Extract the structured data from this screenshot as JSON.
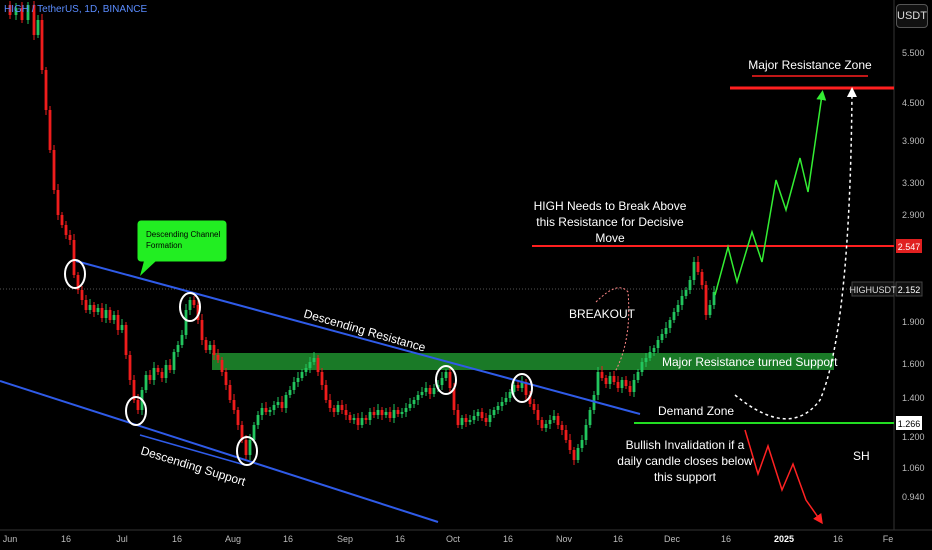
{
  "header": {
    "symbol_title": "HIGH / TetherUS, 1D, BINANCE",
    "currency": "USDT"
  },
  "colors": {
    "background": "#000000",
    "up": "#22c55e",
    "down": "#ef1c1c",
    "channel": "#2f5be8",
    "resistance": "#ff1f1f",
    "support_zone": "#1f8f2e",
    "projection_up": "#33ee33",
    "projection_down": "#ff2222"
  },
  "chart_data": {
    "type": "candlestick",
    "symbol": "HIGHUSDT",
    "y_scale": "log",
    "y_ticks": [
      "5.500",
      "4.500",
      "3.900",
      "3.300",
      "2.900",
      "2.547",
      "2.152",
      "1.900",
      "1.600",
      "1.400",
      "1.266",
      "1.200",
      "1.060",
      "0.940"
    ],
    "x_ticks": [
      "Jun",
      "16",
      "Jul",
      "16",
      "Aug",
      "16",
      "Sep",
      "16",
      "Oct",
      "16",
      "Nov",
      "16",
      "Dec",
      "16",
      "2025",
      "16",
      "Fe"
    ],
    "last_price": "2.152",
    "price_labels": [
      {
        "name": "HIGHUSDT",
        "value": "2.152"
      },
      {
        "name": "resistance",
        "value": "2.547"
      },
      {
        "name": "support",
        "value": "1.266"
      }
    ],
    "levels": {
      "major_resistance_zone": 4.85,
      "resistance": 2.547,
      "support_zone_top": 1.63,
      "support_zone_bottom": 1.54,
      "demand_zone": 1.266
    },
    "annotations": {
      "callout": "Descending Channel Formation",
      "descending_resistance": "Descending Resistance",
      "descending_support": "Descending Support",
      "major_resistance_zone": "Major Resistance Zone",
      "needs_break": "HIGH Needs to Break Above this Resistance for Decisive Move",
      "breakout": "BREAKOUT",
      "turned_support": "Major Resistance turned Support",
      "demand_zone": "Demand Zone",
      "invalidation": "Bullish Invalidation if a daily candle closes below this support",
      "sh": "SH"
    }
  }
}
